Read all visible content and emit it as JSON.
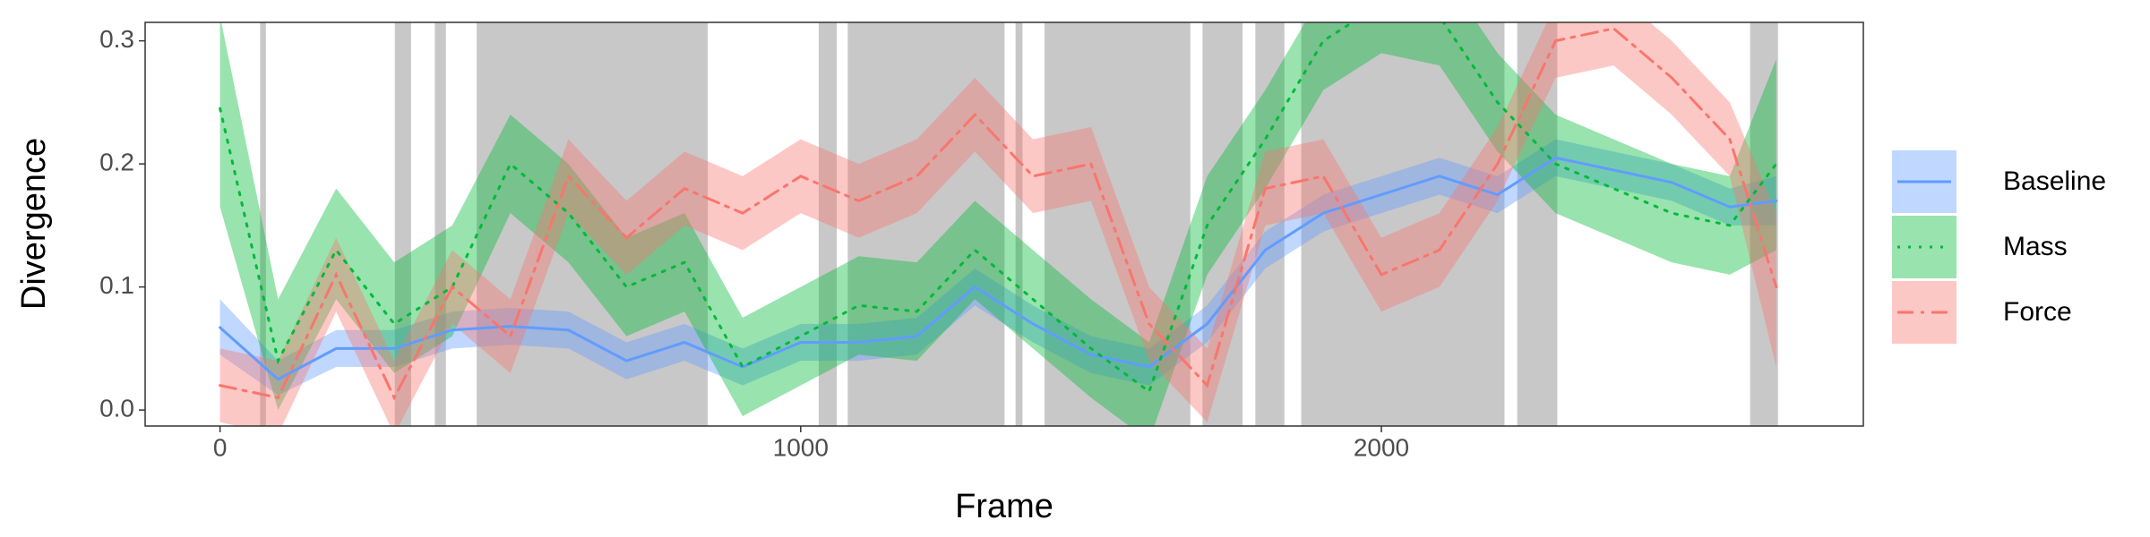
{
  "chart_data": {
    "type": "line",
    "x_label": "Frame",
    "y_label": "Divergence",
    "x": [
      0,
      100,
      200,
      300,
      400,
      500,
      600,
      700,
      800,
      900,
      1000,
      1100,
      1200,
      1300,
      1400,
      1500,
      1600,
      1700,
      1800,
      1900,
      2000,
      2100,
      2200,
      2300,
      2400,
      2500,
      2600,
      2680
    ],
    "series": [
      {
        "name": "Baseline",
        "color": "#619CFF",
        "linestyle": "solid",
        "values": [
          0.067,
          0.025,
          0.05,
          0.05,
          0.065,
          0.068,
          0.065,
          0.04,
          0.055,
          0.035,
          0.055,
          0.055,
          0.06,
          0.1,
          0.07,
          0.045,
          0.035,
          0.07,
          0.13,
          0.16,
          0.175,
          0.19,
          0.175,
          0.205,
          0.195,
          0.185,
          0.165,
          0.17
        ],
        "lower": [
          0.045,
          0.012,
          0.035,
          0.035,
          0.05,
          0.053,
          0.05,
          0.025,
          0.04,
          0.02,
          0.04,
          0.04,
          0.045,
          0.085,
          0.055,
          0.03,
          0.02,
          0.055,
          0.115,
          0.145,
          0.16,
          0.175,
          0.16,
          0.19,
          0.18,
          0.17,
          0.15,
          0.15
        ],
        "upper": [
          0.09,
          0.04,
          0.065,
          0.065,
          0.08,
          0.083,
          0.08,
          0.055,
          0.07,
          0.05,
          0.07,
          0.07,
          0.075,
          0.115,
          0.085,
          0.06,
          0.05,
          0.085,
          0.145,
          0.175,
          0.19,
          0.205,
          0.19,
          0.22,
          0.21,
          0.2,
          0.18,
          0.19
        ]
      },
      {
        "name": "Mass",
        "color": "#00BA38",
        "linestyle": "dotted",
        "values": [
          0.245,
          0.04,
          0.13,
          0.07,
          0.1,
          0.2,
          0.16,
          0.1,
          0.12,
          0.035,
          0.06,
          0.085,
          0.08,
          0.13,
          0.09,
          0.05,
          0.015,
          0.15,
          0.22,
          0.3,
          0.33,
          0.32,
          0.25,
          0.2,
          0.18,
          0.16,
          0.15,
          0.2
        ],
        "lower": [
          0.165,
          0.0,
          0.09,
          0.03,
          0.06,
          0.16,
          0.12,
          0.06,
          0.08,
          -0.005,
          0.02,
          0.045,
          0.04,
          0.09,
          0.05,
          0.01,
          -0.025,
          0.11,
          0.18,
          0.26,
          0.29,
          0.28,
          0.21,
          0.16,
          0.14,
          0.12,
          0.11,
          0.13
        ],
        "upper": [
          0.32,
          0.09,
          0.18,
          0.12,
          0.15,
          0.24,
          0.2,
          0.14,
          0.16,
          0.075,
          0.1,
          0.125,
          0.12,
          0.17,
          0.13,
          0.09,
          0.055,
          0.19,
          0.26,
          0.34,
          0.37,
          0.36,
          0.29,
          0.24,
          0.22,
          0.2,
          0.19,
          0.285
        ]
      },
      {
        "name": "Force",
        "color": "#F8766D",
        "linestyle": "dashdot",
        "values": [
          0.02,
          0.01,
          0.11,
          0.01,
          0.1,
          0.06,
          0.19,
          0.14,
          0.18,
          0.16,
          0.19,
          0.17,
          0.19,
          0.24,
          0.19,
          0.2,
          0.07,
          0.02,
          0.18,
          0.19,
          0.11,
          0.13,
          0.2,
          0.3,
          0.31,
          0.27,
          0.22,
          0.1
        ],
        "lower": [
          -0.01,
          -0.02,
          0.08,
          -0.02,
          0.07,
          0.03,
          0.16,
          0.11,
          0.15,
          0.13,
          0.16,
          0.14,
          0.16,
          0.21,
          0.16,
          0.17,
          0.04,
          -0.01,
          0.15,
          0.16,
          0.08,
          0.1,
          0.17,
          0.27,
          0.28,
          0.24,
          0.19,
          0.035
        ],
        "upper": [
          0.05,
          0.04,
          0.14,
          0.04,
          0.13,
          0.09,
          0.22,
          0.17,
          0.21,
          0.19,
          0.22,
          0.2,
          0.22,
          0.27,
          0.22,
          0.23,
          0.1,
          0.05,
          0.21,
          0.22,
          0.14,
          0.16,
          0.23,
          0.33,
          0.34,
          0.3,
          0.25,
          0.16
        ]
      }
    ],
    "shaded_regions": [
      [
        69,
        79
      ],
      [
        301,
        329
      ],
      [
        370,
        389
      ],
      [
        442,
        840
      ],
      [
        1031,
        1062
      ],
      [
        1081,
        1351
      ],
      [
        1370,
        1382
      ],
      [
        1420,
        1671
      ],
      [
        1692,
        1761
      ],
      [
        1783,
        1833
      ],
      [
        1862,
        2212
      ],
      [
        2234,
        2303
      ],
      [
        2635,
        2683
      ]
    ],
    "shade_color": "#c8c8c8",
    "xlim": [
      -129,
      2830
    ],
    "ylim": [
      -0.013,
      0.315
    ],
    "xticks": [
      0,
      1000,
      2000
    ],
    "yticks": [
      {
        "value": 0,
        "label": "0.0"
      },
      {
        "value": 0.1,
        "label": "0.1"
      },
      {
        "value": 0.2,
        "label": "0.2"
      },
      {
        "value": 0.3,
        "label": "0.3"
      }
    ],
    "grid": false,
    "legend": "right"
  }
}
